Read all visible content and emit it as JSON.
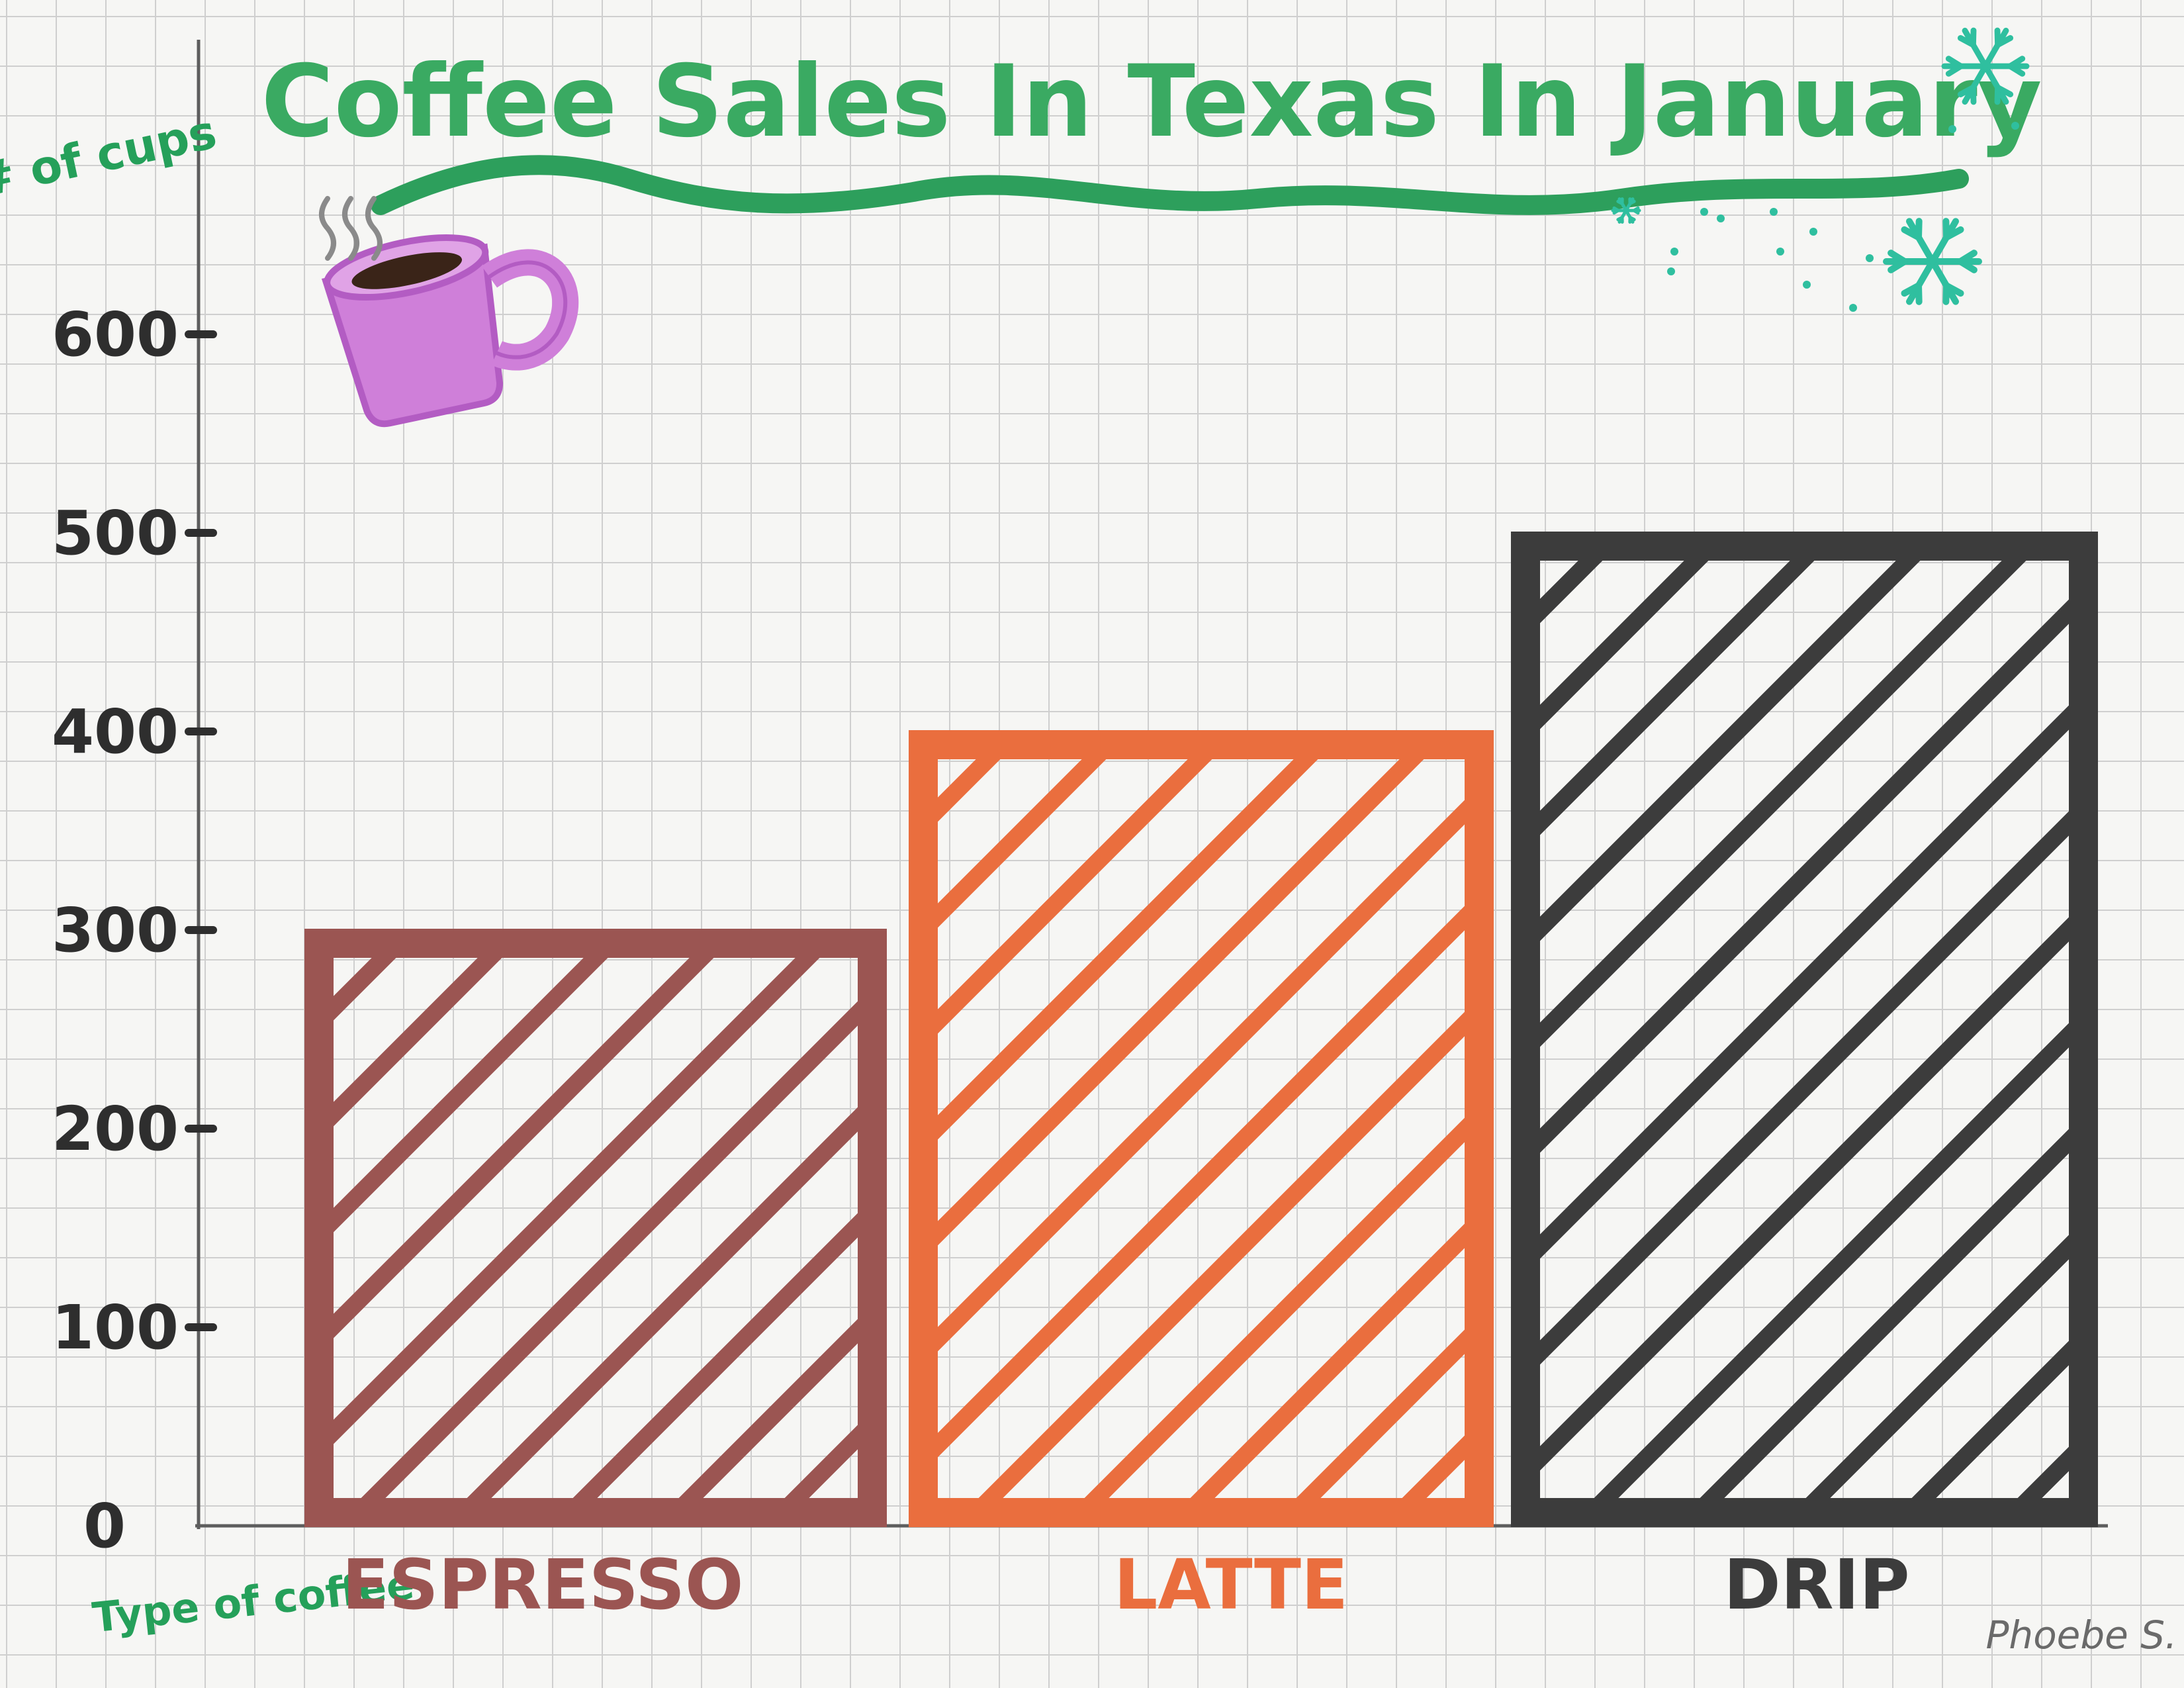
{
  "page": {
    "signature": "Phoebe S."
  },
  "chart_data": {
    "type": "bar",
    "title": "Coffee Sales In Texas In January",
    "xlabel": "Type of coffee",
    "ylabel": "# of cups",
    "categories": [
      "ESPRESSO",
      "LATTE",
      "DRIP"
    ],
    "values": [
      300,
      400,
      500
    ],
    "ylim": [
      0,
      700
    ],
    "yticks": [
      0,
      100,
      200,
      300,
      400,
      500,
      600
    ],
    "grid": true,
    "legend": "none",
    "bar_style": "diagonal hatch",
    "colors": {
      "ESPRESSO": "#9b5552",
      "LATTE": "#ea6e3e",
      "DRIP": "#3c3c3c",
      "title": "#3aaa62",
      "axis_labels": "#25a05a",
      "ticks": "#2e2e2e",
      "mug": "#cf7fd9",
      "snowflake": "#2fbf9f"
    }
  }
}
